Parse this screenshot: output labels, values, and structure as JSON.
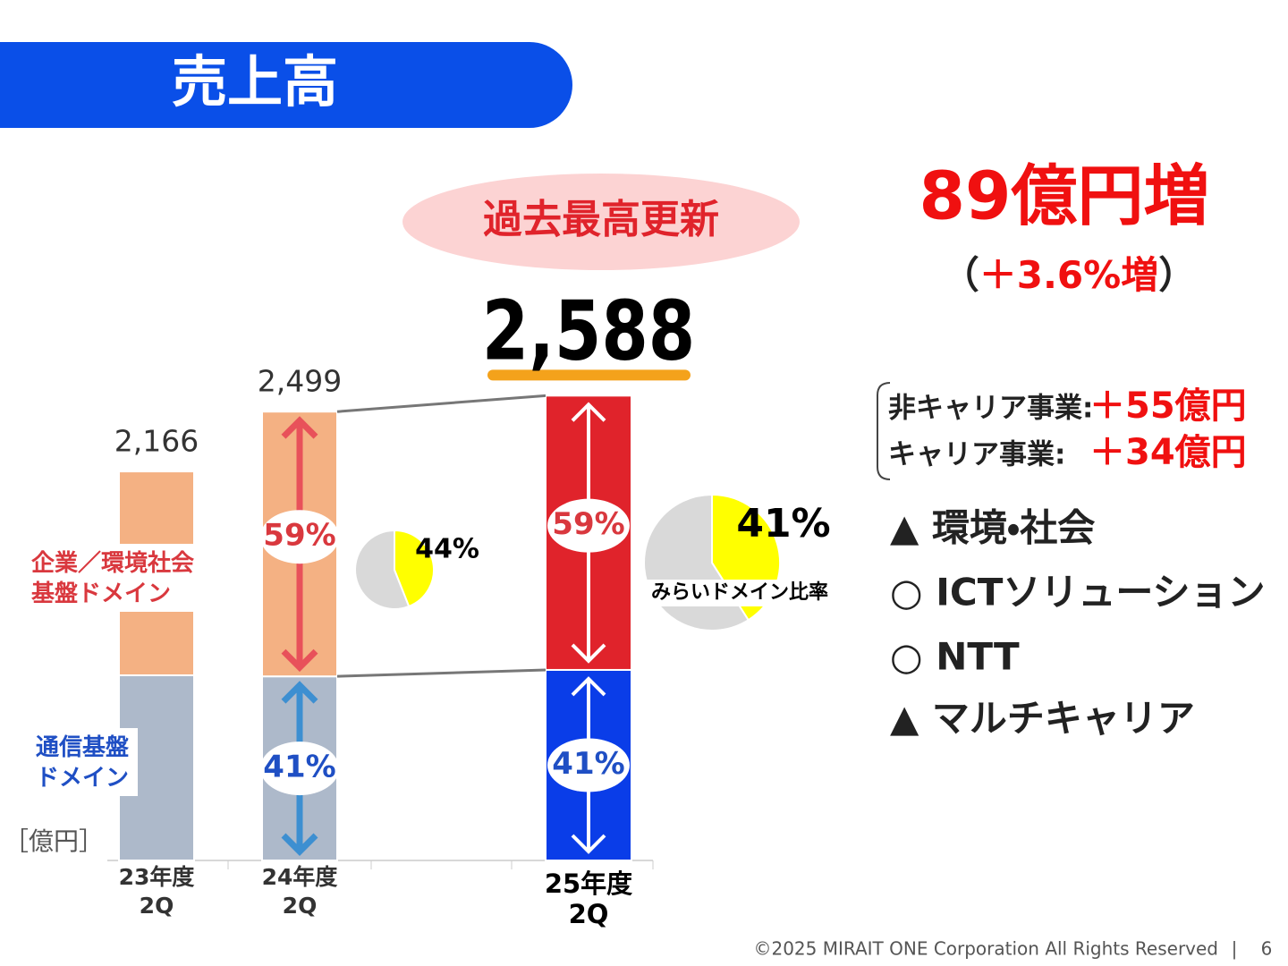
{
  "header": {
    "title": "売上高"
  },
  "badge": "過去最高更新",
  "headline": "89億円増",
  "headline_sub": [
    "（",
    "＋3.6%増",
    "）"
  ],
  "breakdown": [
    {
      "label": "非キャリア事業:",
      "value": "＋55億円"
    },
    {
      "label": "キャリア事業:",
      "value": "＋34億円"
    }
  ],
  "segments": [
    "▲ 環境・社会",
    "○ ICTソリューション",
    "○ NTT",
    "▲ マルチキャリア"
  ],
  "footer": {
    "copyright": "©2025 MIRAIT ONE Corporation All Rights Reserved",
    "separator": "|",
    "page": "6"
  },
  "chart_data": {
    "type": "stacked_bar",
    "unit_label": "［億円］",
    "categories": [
      [
        "23年度",
        "2Q"
      ],
      [
        "24年度",
        "2Q"
      ],
      [
        "25年度",
        "2Q"
      ]
    ],
    "totals": [
      2166,
      2499,
      2588
    ],
    "total_labels": [
      "2,166",
      "2,499",
      "2,588"
    ],
    "series": [
      {
        "name": "通信基盤\nドメイン",
        "color": [
          "#adb9ca",
          "#adb9ca",
          "#0a3de8"
        ],
        "label_color": "#1f4fc4",
        "values": [
          1031,
          1025,
          1061
        ],
        "shares": [
          null,
          41,
          41
        ],
        "share_labels": [
          null,
          "41%",
          "41%"
        ]
      },
      {
        "name": "企業／環境社会\n基盤ドメイン",
        "color": [
          "#f4b183",
          "#f4b183",
          "#e0232b"
        ],
        "label_color": "#d9383e",
        "values": [
          1135,
          1474,
          1527
        ],
        "shares": [
          null,
          59,
          59
        ],
        "share_labels": [
          null,
          "59%",
          "59%"
        ]
      }
    ],
    "pies": [
      {
        "value": 44,
        "label": "44%",
        "color": "#ffff00"
      },
      {
        "value": 41,
        "label": "41%",
        "color": "#ffff00",
        "caption": "みらいドメイン比率"
      }
    ]
  }
}
